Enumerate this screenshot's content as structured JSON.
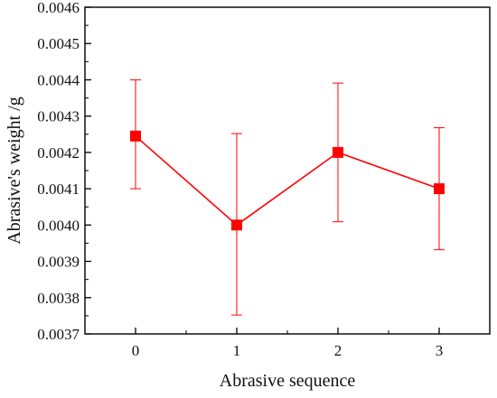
{
  "chart_data": {
    "type": "line",
    "xlabel": "Abrasive sequence",
    "ylabel": "Abrasive's weight /g",
    "x": [
      0,
      1,
      2,
      3
    ],
    "x_tick_labels": [
      "0",
      "1",
      "2",
      "3"
    ],
    "xlim": [
      -0.5,
      3.5
    ],
    "ylim": [
      0.0037,
      0.0046
    ],
    "y_ticks": [
      "0.0037",
      "0.0038",
      "0.0039",
      "0.0040",
      "0.0041",
      "0.0042",
      "0.0043",
      "0.0044",
      "0.0045",
      "0.0046"
    ],
    "grid": false,
    "series": [
      {
        "values": [
          0.004245,
          0.004,
          0.0042,
          0.0041
        ],
        "error_low": [
          0.0041,
          0.003752,
          0.004009,
          0.003932
        ],
        "error_high": [
          0.0044,
          0.004252,
          0.004391,
          0.004268
        ],
        "color": "#ff0000",
        "marker": "square"
      }
    ]
  }
}
